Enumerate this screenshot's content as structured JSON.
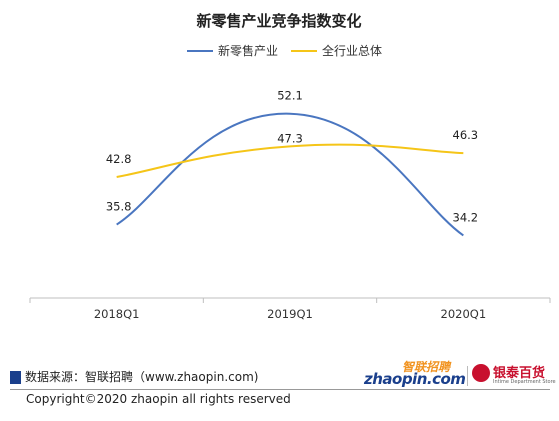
{
  "chart_data": {
    "type": "line",
    "title": "新零售产业竞争指数变化",
    "categories": [
      "2018Q1",
      "2019Q1",
      "2020Q1"
    ],
    "series": [
      {
        "name": "新零售产业",
        "values": [
          35.8,
          52.1,
          34.2
        ],
        "color": "#4a76c0"
      },
      {
        "name": "全行业总体",
        "values": [
          42.8,
          47.3,
          46.3
        ],
        "color": "#f5c518"
      }
    ],
    "xlabel": "",
    "ylabel": "",
    "ylim": [
      25,
      60
    ],
    "grid": false,
    "legend": "top-center",
    "smooth": true
  },
  "footer": {
    "source": "数据来源：智联招聘（www.zhaopin.com)",
    "zhaopin_cn": "智联招聘",
    "zhaopin_en": "zhaopin.com",
    "yintai_cn": "银泰百货",
    "yintai_en": "Intime Department Store",
    "copyright": "Copyright©2020 zhaopin all rights reserved"
  }
}
